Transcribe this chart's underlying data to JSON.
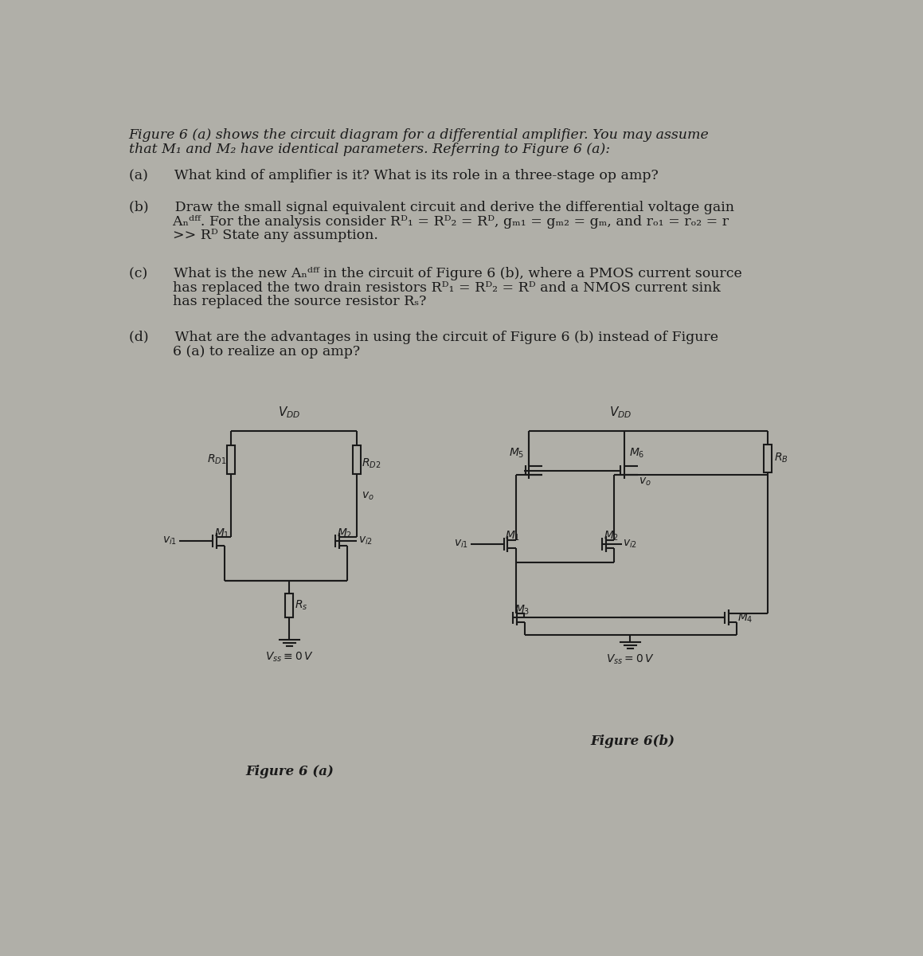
{
  "bg_color": "#b0afa8",
  "text_color": "#1a1a1a",
  "line_color": "#1a1a1a",
  "title_line1": "Figure 6 (a) shows the circuit diagram for a differential amplifier. You may assume",
  "title_line2": "that M₁ and M₂ have identical parameters. Referring to Figure 6 (a):",
  "qa": "(a)      What kind of amplifier is it? What is its role in a three-stage op amp?",
  "qb1": "(b)      Draw the small signal equivalent circuit and derive the differential voltage gain",
  "qb2": "          Aₙᵈᶠᶠ. For the analysis consider Rᴰ₁ = Rᴰ₂ = Rᴰ, gₘ₁ = gₘ₂ = gₘ, and rₒ₁ = rₒ₂ = r",
  "qb3": "          >> Rᴰ State any assumption.",
  "qc1": "(c)      What is the new Aₙᵈᶠᶠ in the circuit of Figure 6 (b), where a PMOS current source",
  "qc2": "          has replaced the two drain resistors Rᴰ₁ = Rᴰ₂ = Rᴰ and a NMOS current sink",
  "qc3": "          has replaced the source resistor Rₛ?",
  "qd1": "(d)      What are the advantages in using the circuit of Figure 6 (b) instead of Figure",
  "qd2": "          6 (a) to realize an op amp?",
  "fig_a_label": "Figure 6 (a)",
  "fig_b_label": "Figure 6(b)"
}
